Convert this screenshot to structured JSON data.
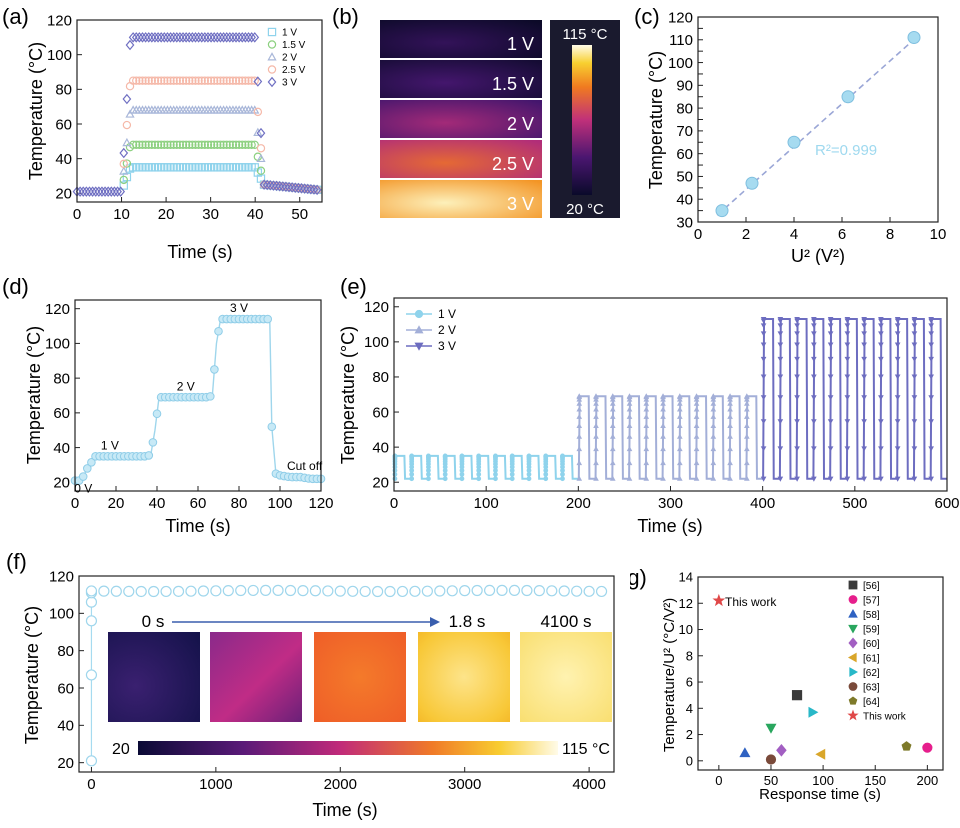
{
  "chart_data": [
    {
      "id": "a",
      "panel_label": "(a)",
      "type": "scatter",
      "xlabel": "Time (s)",
      "ylabel": "Temperature (°C)",
      "xlim": [
        0,
        55
      ],
      "ylim": [
        15,
        120
      ],
      "xticks": [
        0,
        10,
        20,
        30,
        40,
        50
      ],
      "yticks": [
        20,
        40,
        60,
        80,
        100,
        120
      ],
      "legend": "top-right",
      "series": [
        {
          "name": "1 V",
          "marker": "square",
          "color": "#8fd3ec",
          "plateau": 35
        },
        {
          "name": "1.5 V",
          "marker": "circle",
          "color": "#8cd07f",
          "plateau": 48
        },
        {
          "name": "2 V",
          "marker": "triangle",
          "color": "#a9b7d9",
          "plateau": 68
        },
        {
          "name": "2.5 V",
          "marker": "circle",
          "color": "#f5b8a8",
          "plateau": 85
        },
        {
          "name": "3 V",
          "marker": "diamond",
          "color": "#6f6fc2",
          "plateau": 110
        }
      ],
      "t_on": 10,
      "t_off": 40,
      "baseline": 21
    },
    {
      "id": "b",
      "panel_label": "(b)",
      "type": "heatmap",
      "rows": [
        {
          "label": "1 V",
          "level": 0.05
        },
        {
          "label": "1.5 V",
          "level": 0.12
        },
        {
          "label": "2 V",
          "level": 0.32
        },
        {
          "label": "2.5 V",
          "level": 0.55
        },
        {
          "label": "3 V",
          "level": 0.85
        }
      ],
      "colorbar_max": "115 °C",
      "colorbar_min": "20 °C"
    },
    {
      "id": "c",
      "panel_label": "(c)",
      "type": "scatter",
      "xlabel": "U² (V²)",
      "ylabel": "Temperature (°C)",
      "xlim": [
        0,
        10
      ],
      "ylim": [
        30,
        120
      ],
      "xticks": [
        0,
        2,
        4,
        6,
        8,
        10
      ],
      "yticks": [
        30,
        35,
        40,
        45,
        50,
        55,
        60,
        65,
        70,
        75,
        80,
        85,
        90,
        95,
        100,
        105,
        110,
        115,
        120
      ],
      "x": [
        1,
        2.25,
        4,
        6.25,
        9
      ],
      "y": [
        35,
        47,
        65,
        85,
        111
      ],
      "fit": {
        "x": [
          0.8,
          9.2
        ],
        "y": [
          33,
          112
        ]
      },
      "annotation": "R²=0.999"
    },
    {
      "id": "d",
      "panel_label": "(d)",
      "type": "line",
      "xlabel": "Time (s)",
      "ylabel": "Temperature (°C)",
      "xlim": [
        0,
        120
      ],
      "ylim": [
        15,
        125
      ],
      "xticks": [
        0,
        20,
        40,
        60,
        80,
        100,
        120
      ],
      "yticks": [
        20,
        40,
        60,
        80,
        100,
        120
      ],
      "x": [
        0,
        3,
        6,
        10,
        15,
        20,
        25,
        30,
        35,
        37,
        39,
        41,
        45,
        50,
        55,
        60,
        65,
        67,
        69,
        71,
        75,
        80,
        85,
        90,
        95,
        96,
        98,
        100,
        105,
        110,
        115,
        120
      ],
      "y": [
        21,
        21,
        28,
        35,
        35,
        35,
        35,
        35,
        35,
        36,
        50,
        69,
        69,
        69,
        69,
        69,
        69,
        70,
        100,
        114,
        114,
        114,
        114,
        114,
        114,
        52,
        25,
        24,
        23,
        23,
        22,
        22
      ],
      "annotations": [
        {
          "text": "0 V",
          "x": 4,
          "y": 14
        },
        {
          "text": "1 V",
          "x": 17,
          "y": 39
        },
        {
          "text": "2 V",
          "x": 54,
          "y": 73
        },
        {
          "text": "3 V",
          "x": 80,
          "y": 118
        },
        {
          "text": "Cut off",
          "x": 112,
          "y": 27
        }
      ]
    },
    {
      "id": "e",
      "panel_label": "(e)",
      "type": "line",
      "xlabel": "Time (s)",
      "ylabel": "Temperature (°C)",
      "xlim": [
        0,
        600
      ],
      "ylim": [
        15,
        125
      ],
      "xticks": [
        0,
        100,
        200,
        300,
        400,
        500,
        600
      ],
      "yticks": [
        20,
        40,
        60,
        80,
        100,
        120
      ],
      "legend": "top-left",
      "series": [
        {
          "name": "1 V",
          "marker": "circle",
          "color": "#8fd3ec",
          "x_range": [
            0,
            200
          ],
          "cycles": 11,
          "high": 35,
          "low": 22
        },
        {
          "name": "2 V",
          "marker": "triangle",
          "color": "#a3afd8",
          "x_range": [
            200,
            400
          ],
          "cycles": 11,
          "high": 69,
          "low": 22
        },
        {
          "name": "3 V",
          "marker": "triangle-down",
          "color": "#6d6dc0",
          "x_range": [
            400,
            600
          ],
          "cycles": 11,
          "high": 113,
          "low": 22
        }
      ]
    },
    {
      "id": "f",
      "panel_label": "(f)",
      "type": "scatter",
      "xlabel": "Time (s)",
      "ylabel": "Temperature (°C)",
      "xlim": [
        -100,
        4200
      ],
      "ylim": [
        15,
        120
      ],
      "xticks": [
        0,
        1000,
        2000,
        3000,
        4000
      ],
      "yticks": [
        20,
        40,
        60,
        80,
        100,
        120
      ],
      "initial_x": [
        0,
        0,
        0,
        0,
        0
      ],
      "initial_y": [
        21,
        67,
        96,
        106,
        111
      ],
      "steady_value": 112,
      "steady_range": [
        0,
        4100
      ],
      "inset_times": [
        "0 s",
        "1.8 s",
        "4100 s"
      ],
      "colorbar_min": "20",
      "colorbar_max": "115 °C"
    },
    {
      "id": "g",
      "panel_label": "(g)",
      "type": "scatter",
      "xlabel": "Response time (s)",
      "ylabel": "Temperature/U² (°C/V²)",
      "xlim": [
        -20,
        215
      ],
      "ylim": [
        -0.7,
        14
      ],
      "xticks": [
        0,
        50,
        100,
        150,
        200
      ],
      "yticks": [
        0,
        2,
        4,
        6,
        8,
        10,
        12,
        14
      ],
      "legend": "top-right",
      "this_work_label": "This work",
      "points": [
        {
          "name": "[56]",
          "x": 75,
          "y": 5,
          "marker": "square",
          "color": "#3a3a3a"
        },
        {
          "name": "[57]",
          "x": 200,
          "y": 1,
          "marker": "circle",
          "color": "#e61e8c"
        },
        {
          "name": "[58]",
          "x": 25,
          "y": 0.6,
          "marker": "triangle",
          "color": "#2f62c2"
        },
        {
          "name": "[59]",
          "x": 50,
          "y": 2.5,
          "marker": "triangle-down",
          "color": "#29a65e"
        },
        {
          "name": "[60]",
          "x": 60,
          "y": 0.8,
          "marker": "diamond",
          "color": "#a25fc2"
        },
        {
          "name": "[61]",
          "x": 98,
          "y": 0.5,
          "marker": "triangle-left",
          "color": "#d9a62a"
        },
        {
          "name": "[62]",
          "x": 90,
          "y": 3.7,
          "marker": "triangle-right",
          "color": "#29b8c8"
        },
        {
          "name": "[63]",
          "x": 50,
          "y": 0.1,
          "marker": "circle",
          "color": "#7a4a3a"
        },
        {
          "name": "[64]",
          "x": 180,
          "y": 1.1,
          "marker": "pentagon",
          "color": "#7e7a2a"
        },
        {
          "name": "This work",
          "x": 0,
          "y": 12.2,
          "marker": "star",
          "color": "#e04848"
        }
      ]
    }
  ]
}
